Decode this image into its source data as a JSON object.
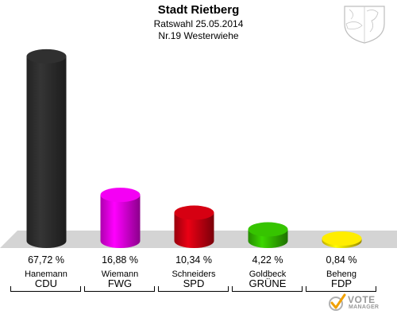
{
  "chart_data": {
    "type": "bar",
    "title": "Stadt Rietberg",
    "subtitle": "Ratswahl 25.05.2014",
    "subtitle2": "Nr.19 Westerwiehe",
    "unit": "%",
    "categories": [
      "CDU",
      "FWG",
      "SPD",
      "GRÜNE",
      "FDP"
    ],
    "candidates": [
      "Hanemann",
      "Wiemann",
      "Schneiders",
      "Goldbeck",
      "Beheng"
    ],
    "values": [
      67.72,
      16.88,
      10.34,
      4.22,
      0.84
    ],
    "value_labels": [
      "67,72 %",
      "16,88 %",
      "10,34 %",
      "4,22 %",
      "0,84 %"
    ],
    "colors": [
      "#2e2e2e",
      "#e800e8",
      "#cc0011",
      "#33bb00",
      "#ffe200"
    ],
    "ylim": [
      0,
      70
    ],
    "grid": false,
    "legend": "none"
  },
  "branding": {
    "logo_name": "votemanager-logo",
    "logo_text_main": "VOTE",
    "logo_text_sub": "MANAGER",
    "crest_name": "nrw-crest-icon"
  }
}
